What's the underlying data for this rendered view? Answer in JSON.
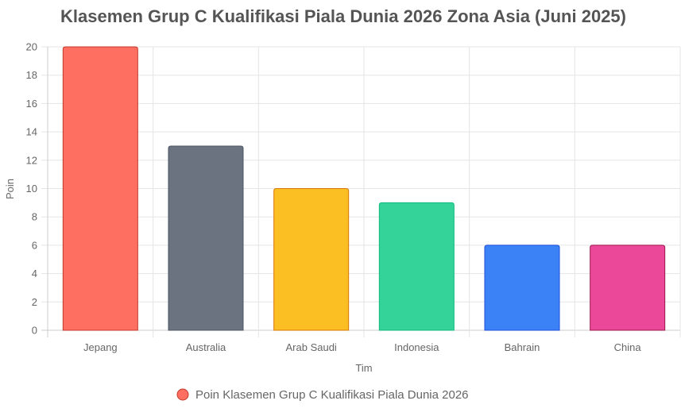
{
  "chart_data": {
    "type": "bar",
    "title": "Klasemen Grup C Kualifikasi Piala Dunia 2026 Zona Asia (Juni 2025)",
    "xlabel": "Tim",
    "ylabel": "Poin",
    "categories": [
      "Jepang",
      "Australia",
      "Arab Saudi",
      "Indonesia",
      "Bahrain",
      "China"
    ],
    "series": [
      {
        "name": "Poin Klasemen Grup C Kualifikasi Piala Dunia 2026",
        "values": [
          20,
          13,
          10,
          9,
          6,
          6
        ]
      }
    ],
    "colors": [
      "#ff6f61",
      "#6b7280",
      "#fbbf24",
      "#34d399",
      "#3b82f6",
      "#ec4899"
    ],
    "border_colors": [
      "#c0392b",
      "#4b5563",
      "#d97706",
      "#10b981",
      "#1d4ed8",
      "#9d174d"
    ],
    "ylim": [
      0,
      20
    ],
    "yticks": [
      0,
      2,
      4,
      6,
      8,
      10,
      12,
      14,
      16,
      18,
      20
    ],
    "grid": true,
    "legend": "bottom"
  }
}
